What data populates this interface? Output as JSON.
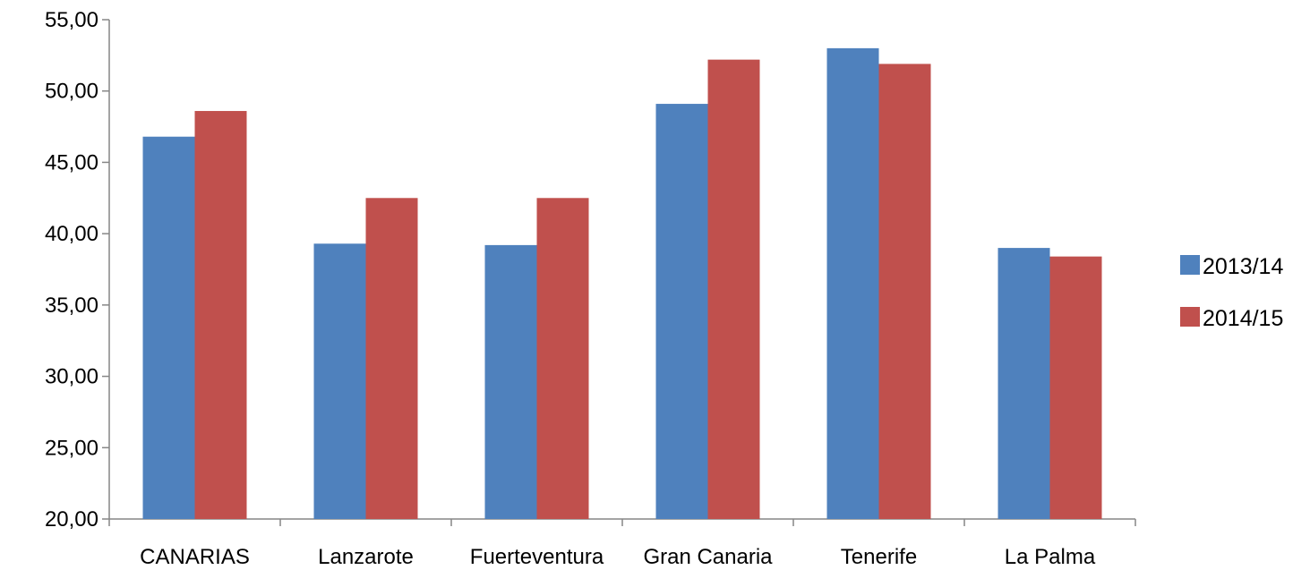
{
  "chart_data": {
    "type": "bar",
    "title": "",
    "xlabel": "",
    "ylabel": "",
    "categories": [
      "CANARIAS",
      "Lanzarote",
      "Fuerteventura",
      "Gran Canaria",
      "Tenerife",
      "La Palma"
    ],
    "series": [
      {
        "name": "2013/14",
        "color": "#4F81BD",
        "values": [
          46.8,
          39.3,
          39.2,
          49.1,
          53.0,
          39.0
        ]
      },
      {
        "name": "2014/15",
        "color": "#C0504D",
        "values": [
          48.6,
          42.5,
          42.5,
          52.2,
          51.9,
          38.4
        ]
      }
    ],
    "ylim": [
      20,
      55
    ],
    "yticks": [
      "20,00",
      "25,00",
      "30,00",
      "35,00",
      "40,00",
      "45,00",
      "50,00",
      "55,00"
    ],
    "ytick_values": [
      20,
      25,
      30,
      35,
      40,
      45,
      50,
      55
    ],
    "grid": false,
    "legend_position": "right"
  }
}
